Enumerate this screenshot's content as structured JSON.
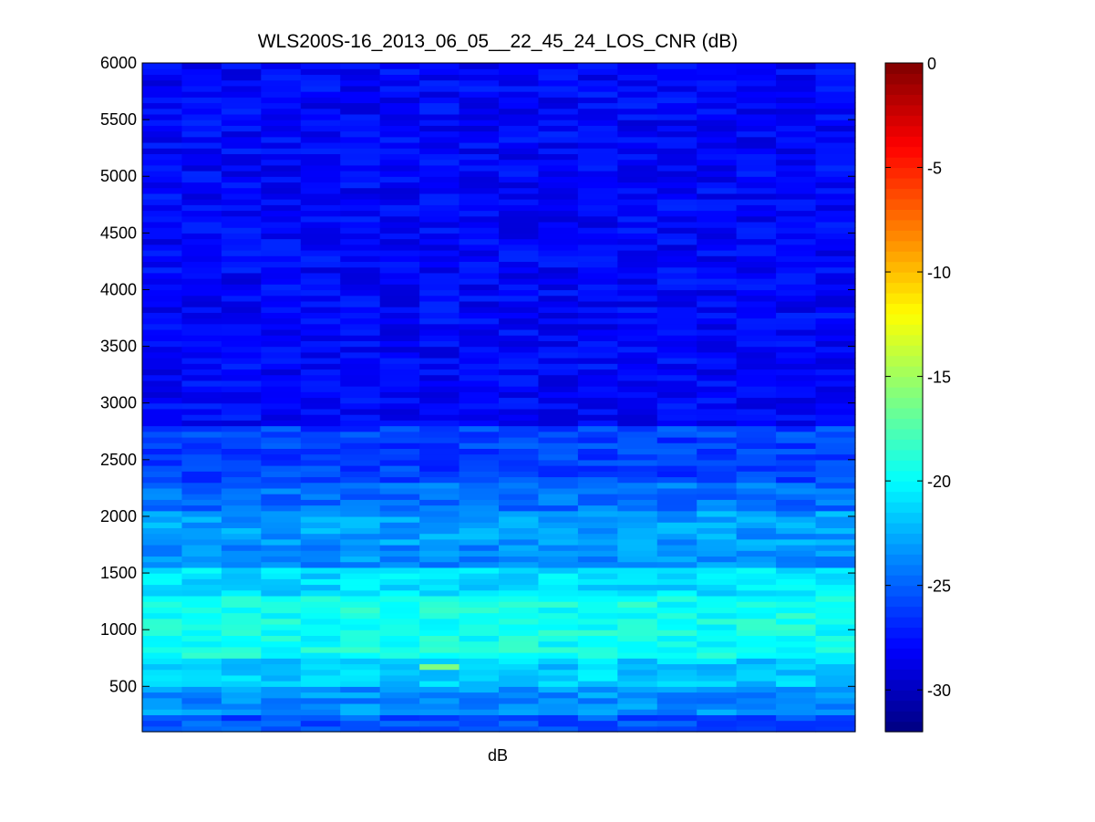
{
  "chart_data": {
    "type": "heatmap",
    "title": "WLS200S-16_2013_06_05__22_45_24_LOS_CNR (dB)",
    "xlabel": "dB",
    "ylabel": "",
    "ylim": [
      100,
      6000
    ],
    "y_ticks": [
      500,
      1000,
      1500,
      2000,
      2500,
      3000,
      3500,
      4000,
      4500,
      5000,
      5500,
      6000
    ],
    "x_ticks": [],
    "colormap": "jet",
    "colorbar": {
      "range": [
        -32,
        0
      ],
      "ticks": [
        0,
        -5,
        -10,
        -15,
        -20,
        -25,
        -30
      ]
    },
    "n_columns": 18,
    "range_gate_start": 100,
    "range_gate_step": 50,
    "row_ranges_m": [
      {
        "from": 100,
        "to": 250,
        "cnr_db": -25.5
      },
      {
        "from": 250,
        "to": 500,
        "cnr_db": -23.5
      },
      {
        "from": 500,
        "to": 750,
        "cnr_db": -21.5
      },
      {
        "from": 750,
        "to": 1300,
        "cnr_db": -19.5
      },
      {
        "from": 1300,
        "to": 1550,
        "cnr_db": -21
      },
      {
        "from": 1550,
        "to": 1750,
        "cnr_db": -23.5
      },
      {
        "from": 1750,
        "to": 2050,
        "cnr_db": -23
      },
      {
        "from": 2050,
        "to": 2300,
        "cnr_db": -24.5
      },
      {
        "from": 2300,
        "to": 2800,
        "cnr_db": -26
      },
      {
        "from": 2800,
        "to": 6000,
        "cnr_db": -28
      }
    ],
    "annotations": [
      {
        "note": "local maximum near column 8",
        "y": 650,
        "cnr_db": -16
      }
    ]
  }
}
